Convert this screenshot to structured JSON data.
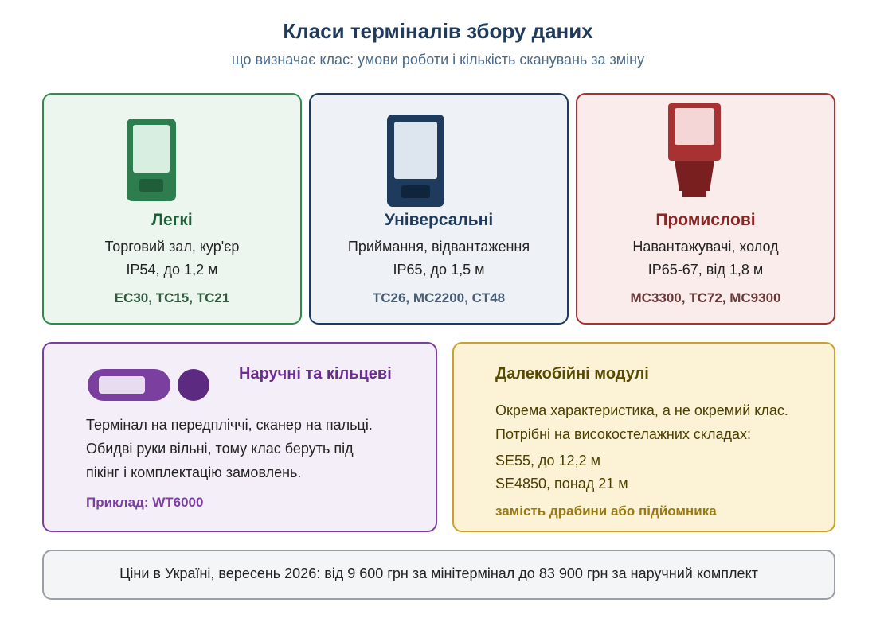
{
  "header": {
    "title": "Класи терміналів збору даних",
    "subtitle": "що визначає клас: умови роботи і кількість сканувань за зміну"
  },
  "cards": [
    {
      "title": "Легкі",
      "lines": [
        "Торговий зал, кур'єр",
        "IP54, до 1,2 м"
      ],
      "models": "EC30, TC15, TC21"
    },
    {
      "title": "Універсальні",
      "lines": [
        "Приймання, відвантаження",
        "IP65, до 1,5 м"
      ],
      "models": "TC26, MC2200, CT48"
    },
    {
      "title": "Промислові",
      "lines": [
        "Навантажувачі, холод",
        "IP65-67, від 1,8 м"
      ],
      "models": "MC3300, TC72, MC9300"
    }
  ],
  "wearable": {
    "title": "Наручні та кільцеві",
    "lines": [
      "Термінал на передпліччі, сканер на пальці.",
      "Обидві руки вільні, тому клас беруть під",
      "пікінг і комплектацію замовлень."
    ],
    "example": "Приклад: WT6000"
  },
  "long_range": {
    "title": "Далекобійні модулі",
    "lines": [
      "Окрема характеристика, а не окремий клас.",
      "Потрібні на високостелажних складах:"
    ],
    "examples": [
      "SE55, до 12,2 м",
      "SE4850, понад 21 м"
    ],
    "note": "замість драбини або підйомника"
  },
  "footer": {
    "text": "Ціни в Україні, вересень 2026: від 9 600 грн за мінітермінал до 83 900 грн за наручний комплект"
  }
}
